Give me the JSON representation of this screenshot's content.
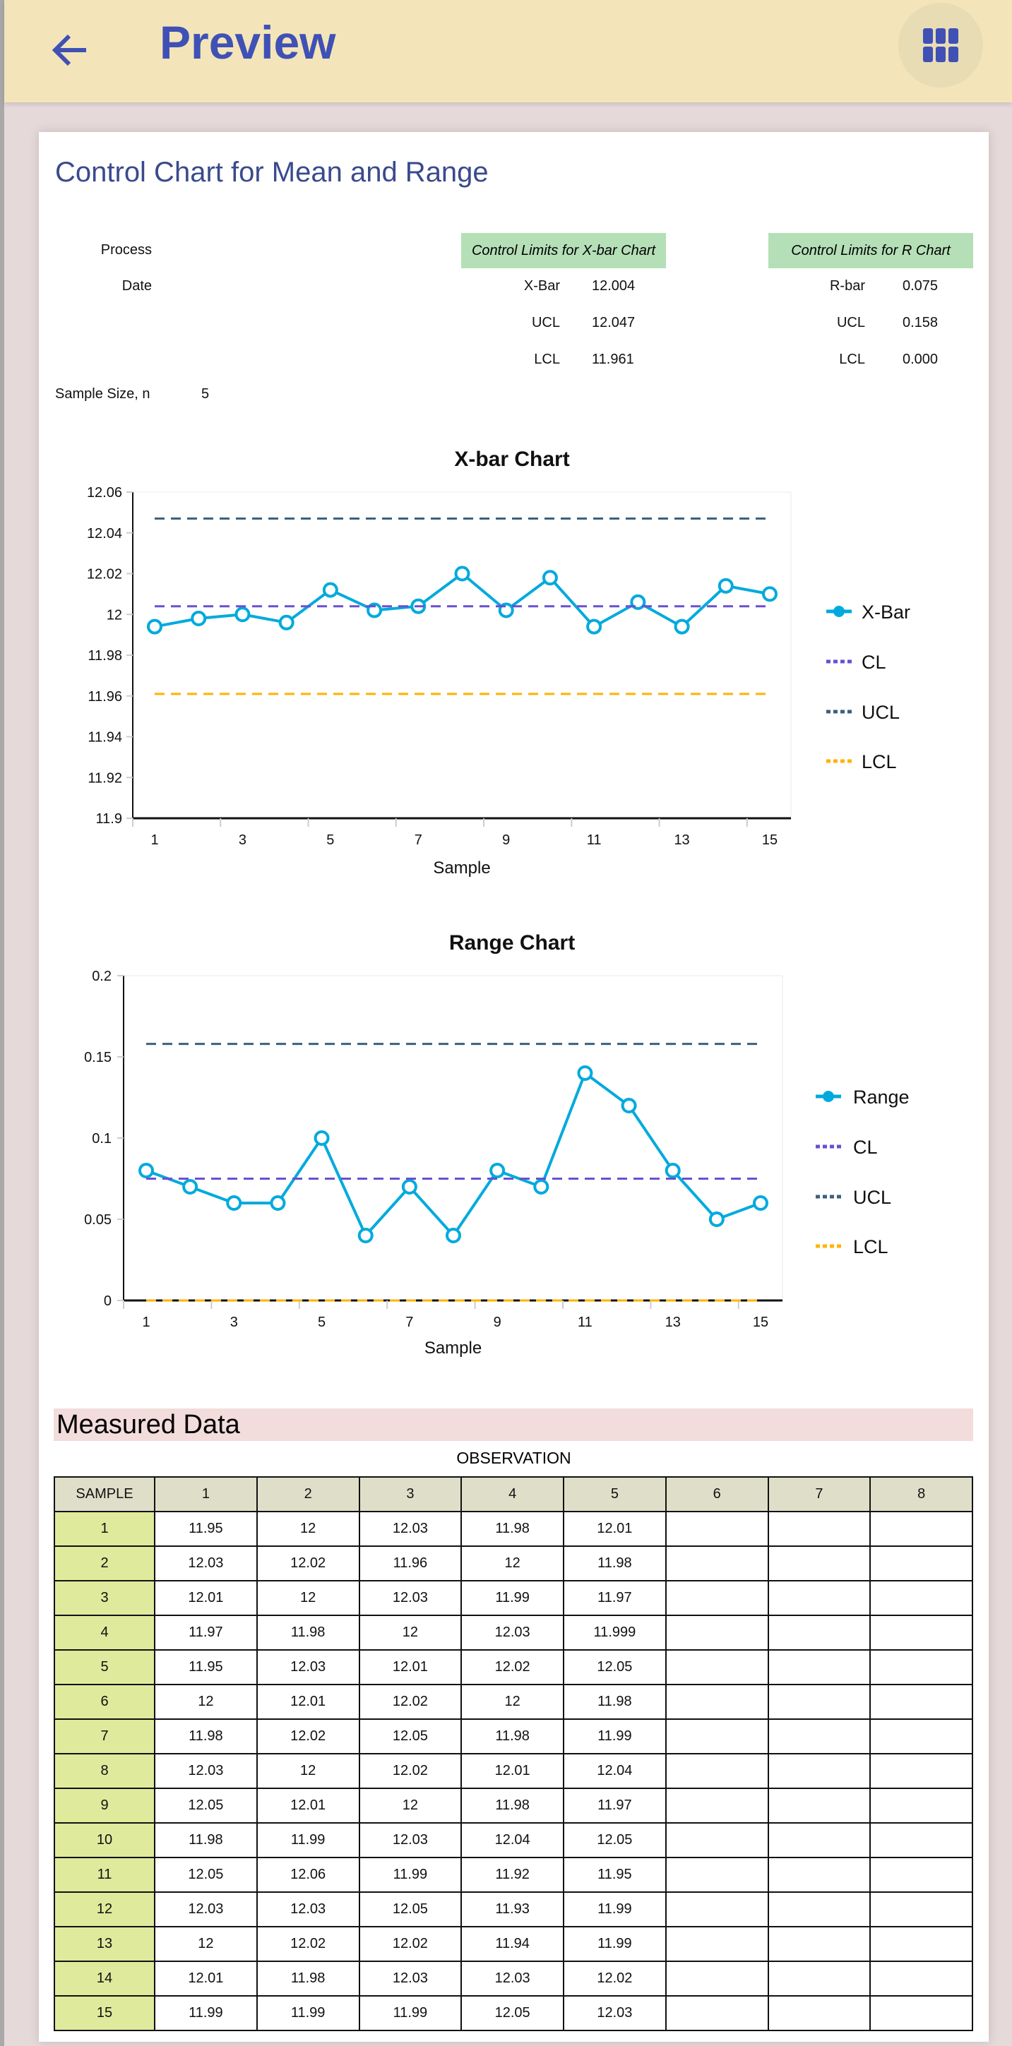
{
  "appbar": {
    "title": "Preview",
    "back_icon": "arrow-left-icon",
    "menu_icon": "grid-apps-icon",
    "accent": "#3f51b5"
  },
  "report": {
    "title": "Control Chart for Mean and Range",
    "process_label": "Process",
    "date_label": "Date",
    "sample_size_label": "Sample Size, n",
    "sample_size": "5",
    "xbar_limits": {
      "header": "Control Limits for X-bar Chart",
      "center_label": "X-Bar",
      "center": "12.004",
      "ucl_label": "UCL",
      "ucl": "12.047",
      "lcl_label": "LCL",
      "lcl": "11.961"
    },
    "r_limits": {
      "header": "Control Limits for R Chart",
      "center_label": "R-bar",
      "center": "0.075",
      "ucl_label": "UCL",
      "ucl": "0.158",
      "lcl_label": "LCL",
      "lcl": "0.000"
    }
  },
  "chart_data": [
    {
      "type": "line",
      "title": "X-bar Chart",
      "xlabel": "Sample",
      "ylabel": "",
      "x": [
        1,
        2,
        3,
        4,
        5,
        6,
        7,
        8,
        9,
        10,
        11,
        12,
        13,
        14,
        15
      ],
      "xticks": [
        "1",
        "3",
        "5",
        "7",
        "9",
        "11",
        "13",
        "15"
      ],
      "yticks": [
        "12.06",
        "12.04",
        "12.02",
        "12",
        "11.98",
        "11.96",
        "11.94",
        "11.92",
        "11.9"
      ],
      "ylim": [
        11.9,
        12.06
      ],
      "grid": false,
      "legend": "right",
      "series": [
        {
          "name": "X-Bar",
          "color": "#00aadd",
          "style": "solid-markers",
          "values": [
            11.994,
            11.998,
            12.0,
            11.996,
            12.012,
            12.002,
            12.004,
            12.02,
            12.002,
            12.018,
            11.994,
            12.006,
            11.994,
            12.014,
            12.01
          ]
        },
        {
          "name": "CL",
          "color": "#6a4fd0",
          "style": "dashed",
          "value": 12.004
        },
        {
          "name": "UCL",
          "color": "#3c607e",
          "style": "dashed",
          "value": 12.047
        },
        {
          "name": "LCL",
          "color": "#ffb300",
          "style": "dashed",
          "value": 11.961
        }
      ]
    },
    {
      "type": "line",
      "title": "Range Chart",
      "xlabel": "Sample",
      "ylabel": "",
      "x": [
        1,
        2,
        3,
        4,
        5,
        6,
        7,
        8,
        9,
        10,
        11,
        12,
        13,
        14,
        15
      ],
      "xticks": [
        "1",
        "3",
        "5",
        "7",
        "9",
        "11",
        "13",
        "15"
      ],
      "yticks": [
        "0.2",
        "0.15",
        "0.1",
        "0.05",
        "0"
      ],
      "ylim": [
        0,
        0.2
      ],
      "grid": false,
      "legend": "right",
      "series": [
        {
          "name": "Range",
          "color": "#00aadd",
          "style": "solid-markers",
          "values": [
            0.08,
            0.07,
            0.06,
            0.06,
            0.1,
            0.04,
            0.07,
            0.04,
            0.08,
            0.07,
            0.14,
            0.12,
            0.08,
            0.05,
            0.06
          ]
        },
        {
          "name": "CL",
          "color": "#6a4fd0",
          "style": "dashed",
          "value": 0.075
        },
        {
          "name": "UCL",
          "color": "#3c607e",
          "style": "dashed",
          "value": 0.158
        },
        {
          "name": "LCL",
          "color": "#ffb300",
          "style": "dashed",
          "value": 0.0
        }
      ]
    }
  ],
  "measured": {
    "title": "Measured Data",
    "group_header": "OBSERVATION",
    "columns": [
      "SAMPLE",
      "1",
      "2",
      "3",
      "4",
      "5",
      "6",
      "7",
      "8"
    ],
    "rows": [
      [
        "1",
        "11.95",
        "12",
        "12.03",
        "11.98",
        "12.01",
        "",
        "",
        ""
      ],
      [
        "2",
        "12.03",
        "12.02",
        "11.96",
        "12",
        "11.98",
        "",
        "",
        ""
      ],
      [
        "3",
        "12.01",
        "12",
        "12.03",
        "11.99",
        "11.97",
        "",
        "",
        ""
      ],
      [
        "4",
        "11.97",
        "11.98",
        "12",
        "12.03",
        "11.999",
        "",
        "",
        ""
      ],
      [
        "5",
        "11.95",
        "12.03",
        "12.01",
        "12.02",
        "12.05",
        "",
        "",
        ""
      ],
      [
        "6",
        "12",
        "12.01",
        "12.02",
        "12",
        "11.98",
        "",
        "",
        ""
      ],
      [
        "7",
        "11.98",
        "12.02",
        "12.05",
        "11.98",
        "11.99",
        "",
        "",
        ""
      ],
      [
        "8",
        "12.03",
        "12",
        "12.02",
        "12.01",
        "12.04",
        "",
        "",
        ""
      ],
      [
        "9",
        "12.05",
        "12.01",
        "12",
        "11.98",
        "11.97",
        "",
        "",
        ""
      ],
      [
        "10",
        "11.98",
        "11.99",
        "12.03",
        "12.04",
        "12.05",
        "",
        "",
        ""
      ],
      [
        "11",
        "12.05",
        "12.06",
        "11.99",
        "11.92",
        "11.95",
        "",
        "",
        ""
      ],
      [
        "12",
        "12.03",
        "12.03",
        "12.05",
        "11.93",
        "11.99",
        "",
        "",
        ""
      ],
      [
        "13",
        "12",
        "12.02",
        "12.02",
        "11.94",
        "11.99",
        "",
        "",
        ""
      ],
      [
        "14",
        "12.01",
        "11.98",
        "12.03",
        "12.03",
        "12.02",
        "",
        "",
        ""
      ],
      [
        "15",
        "11.99",
        "11.99",
        "11.99",
        "12.05",
        "12.03",
        "",
        "",
        ""
      ]
    ]
  }
}
